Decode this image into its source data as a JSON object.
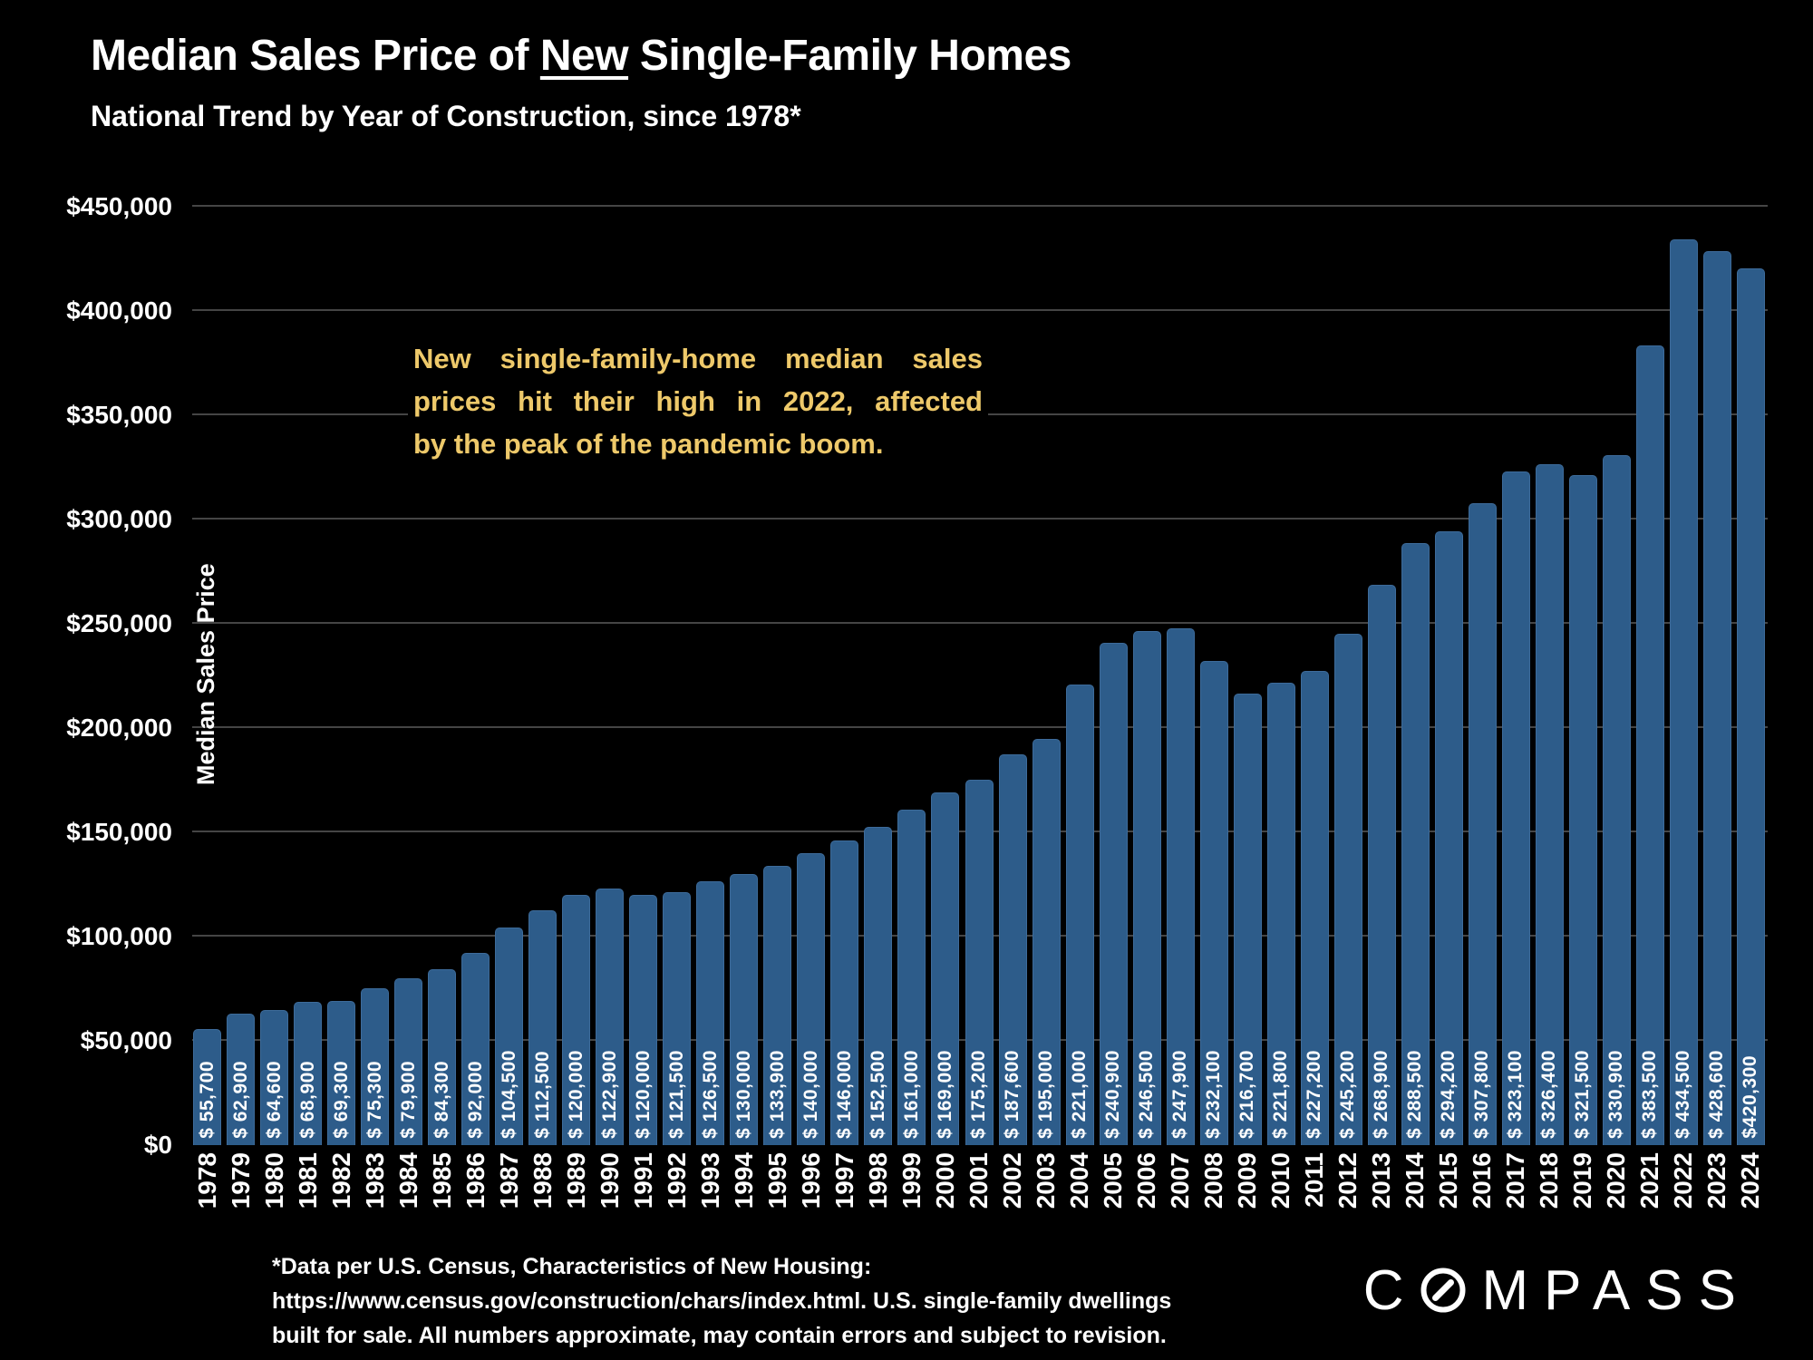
{
  "page": {
    "background": "#000000",
    "text_color": "#FFFFFF"
  },
  "header": {
    "title_pre": "Median Sales Price of ",
    "title_underlined": "New",
    "title_post": " Single-Family Homes",
    "subtitle": "National Trend by Year of Construction, since 1978*"
  },
  "annotation": {
    "color": "#EEC96A",
    "lines": [
      "New single-family-home median sales",
      "prices hit their high in 2022, affected",
      "by the peak of the pandemic boom."
    ]
  },
  "chart_data": {
    "type": "bar",
    "title": "Median Sales Price of New Single-Family Homes",
    "subtitle": "National Trend by Year of Construction, since 1978*",
    "xlabel": "",
    "ylabel": "Median Sales Price",
    "ylim": [
      0,
      450000
    ],
    "ytick_interval": 50000,
    "ytick_labels": [
      "$0",
      "$50,000",
      "$100,000",
      "$150,000",
      "$200,000",
      "$250,000",
      "$300,000",
      "$350,000",
      "$400,000",
      "$450,000"
    ],
    "grid": true,
    "legend_position": "none",
    "bar_color": "#2D5C8A",
    "bar_border_color": "#3D6B9A",
    "grid_color": "#454545",
    "categories": [
      "1978",
      "1979",
      "1980",
      "1981",
      "1982",
      "1983",
      "1984",
      "1985",
      "1986",
      "1987",
      "1988",
      "1989",
      "1990",
      "1991",
      "1992",
      "1993",
      "1994",
      "1995",
      "1996",
      "1997",
      "1998",
      "1999",
      "2000",
      "2001",
      "2002",
      "2003",
      "2004",
      "2005",
      "2006",
      "2007",
      "2008",
      "2009",
      "2010",
      "2011",
      "2012",
      "2013",
      "2014",
      "2015",
      "2016",
      "2017",
      "2018",
      "2019",
      "2020",
      "2021",
      "2022",
      "2023",
      "2024"
    ],
    "values": [
      55700,
      62900,
      64600,
      68900,
      69300,
      75300,
      79900,
      84300,
      92000,
      104500,
      112500,
      120000,
      122900,
      120000,
      121500,
      126500,
      130000,
      133900,
      140000,
      146000,
      152500,
      161000,
      169000,
      175200,
      187600,
      195000,
      221000,
      240900,
      246500,
      247900,
      232100,
      216700,
      221800,
      227200,
      245200,
      268900,
      288500,
      294200,
      307800,
      323100,
      326400,
      321500,
      330900,
      383500,
      434500,
      428600,
      420300
    ],
    "bar_labels": [
      "$ 55,700",
      "$ 62,900",
      "$ 64,600",
      "$ 68,900",
      "$ 69,300",
      "$ 75,300",
      "$ 79,900",
      "$ 84,300",
      "$ 92,000",
      "$ 104,500",
      "$ 112,500",
      "$ 120,000",
      "$ 122,900",
      "$ 120,000",
      "$ 121,500",
      "$ 126,500",
      "$ 130,000",
      "$ 133,900",
      "$ 140,000",
      "$ 146,000",
      "$ 152,500",
      "$ 161,000",
      "$ 169,000",
      "$ 175,200",
      "$ 187,600",
      "$ 195,000",
      "$ 221,000",
      "$ 240,900",
      "$ 246,500",
      "$ 247,900",
      "$ 232,100",
      "$ 216,700",
      "$ 221,800",
      "$ 227,200",
      "$ 245,200",
      "$ 268,900",
      "$ 288,500",
      "$ 294,200",
      "$ 307,800",
      "$ 323,100",
      "$ 326,400",
      "$ 321,500",
      "$ 330,900",
      "$ 383,500",
      "$ 434,500",
      "$ 428,600",
      "$420,300"
    ]
  },
  "footnote": {
    "lines": [
      "*Data per U.S. Census, Characteristics of New Housing:",
      "https://www.census.gov/construction/chars/index.html. U.S. single-family dwellings",
      "built for sale. All numbers approximate, may contain errors and subject to revision."
    ]
  },
  "logo": {
    "part1": "C",
    "part2": "MPASS"
  }
}
